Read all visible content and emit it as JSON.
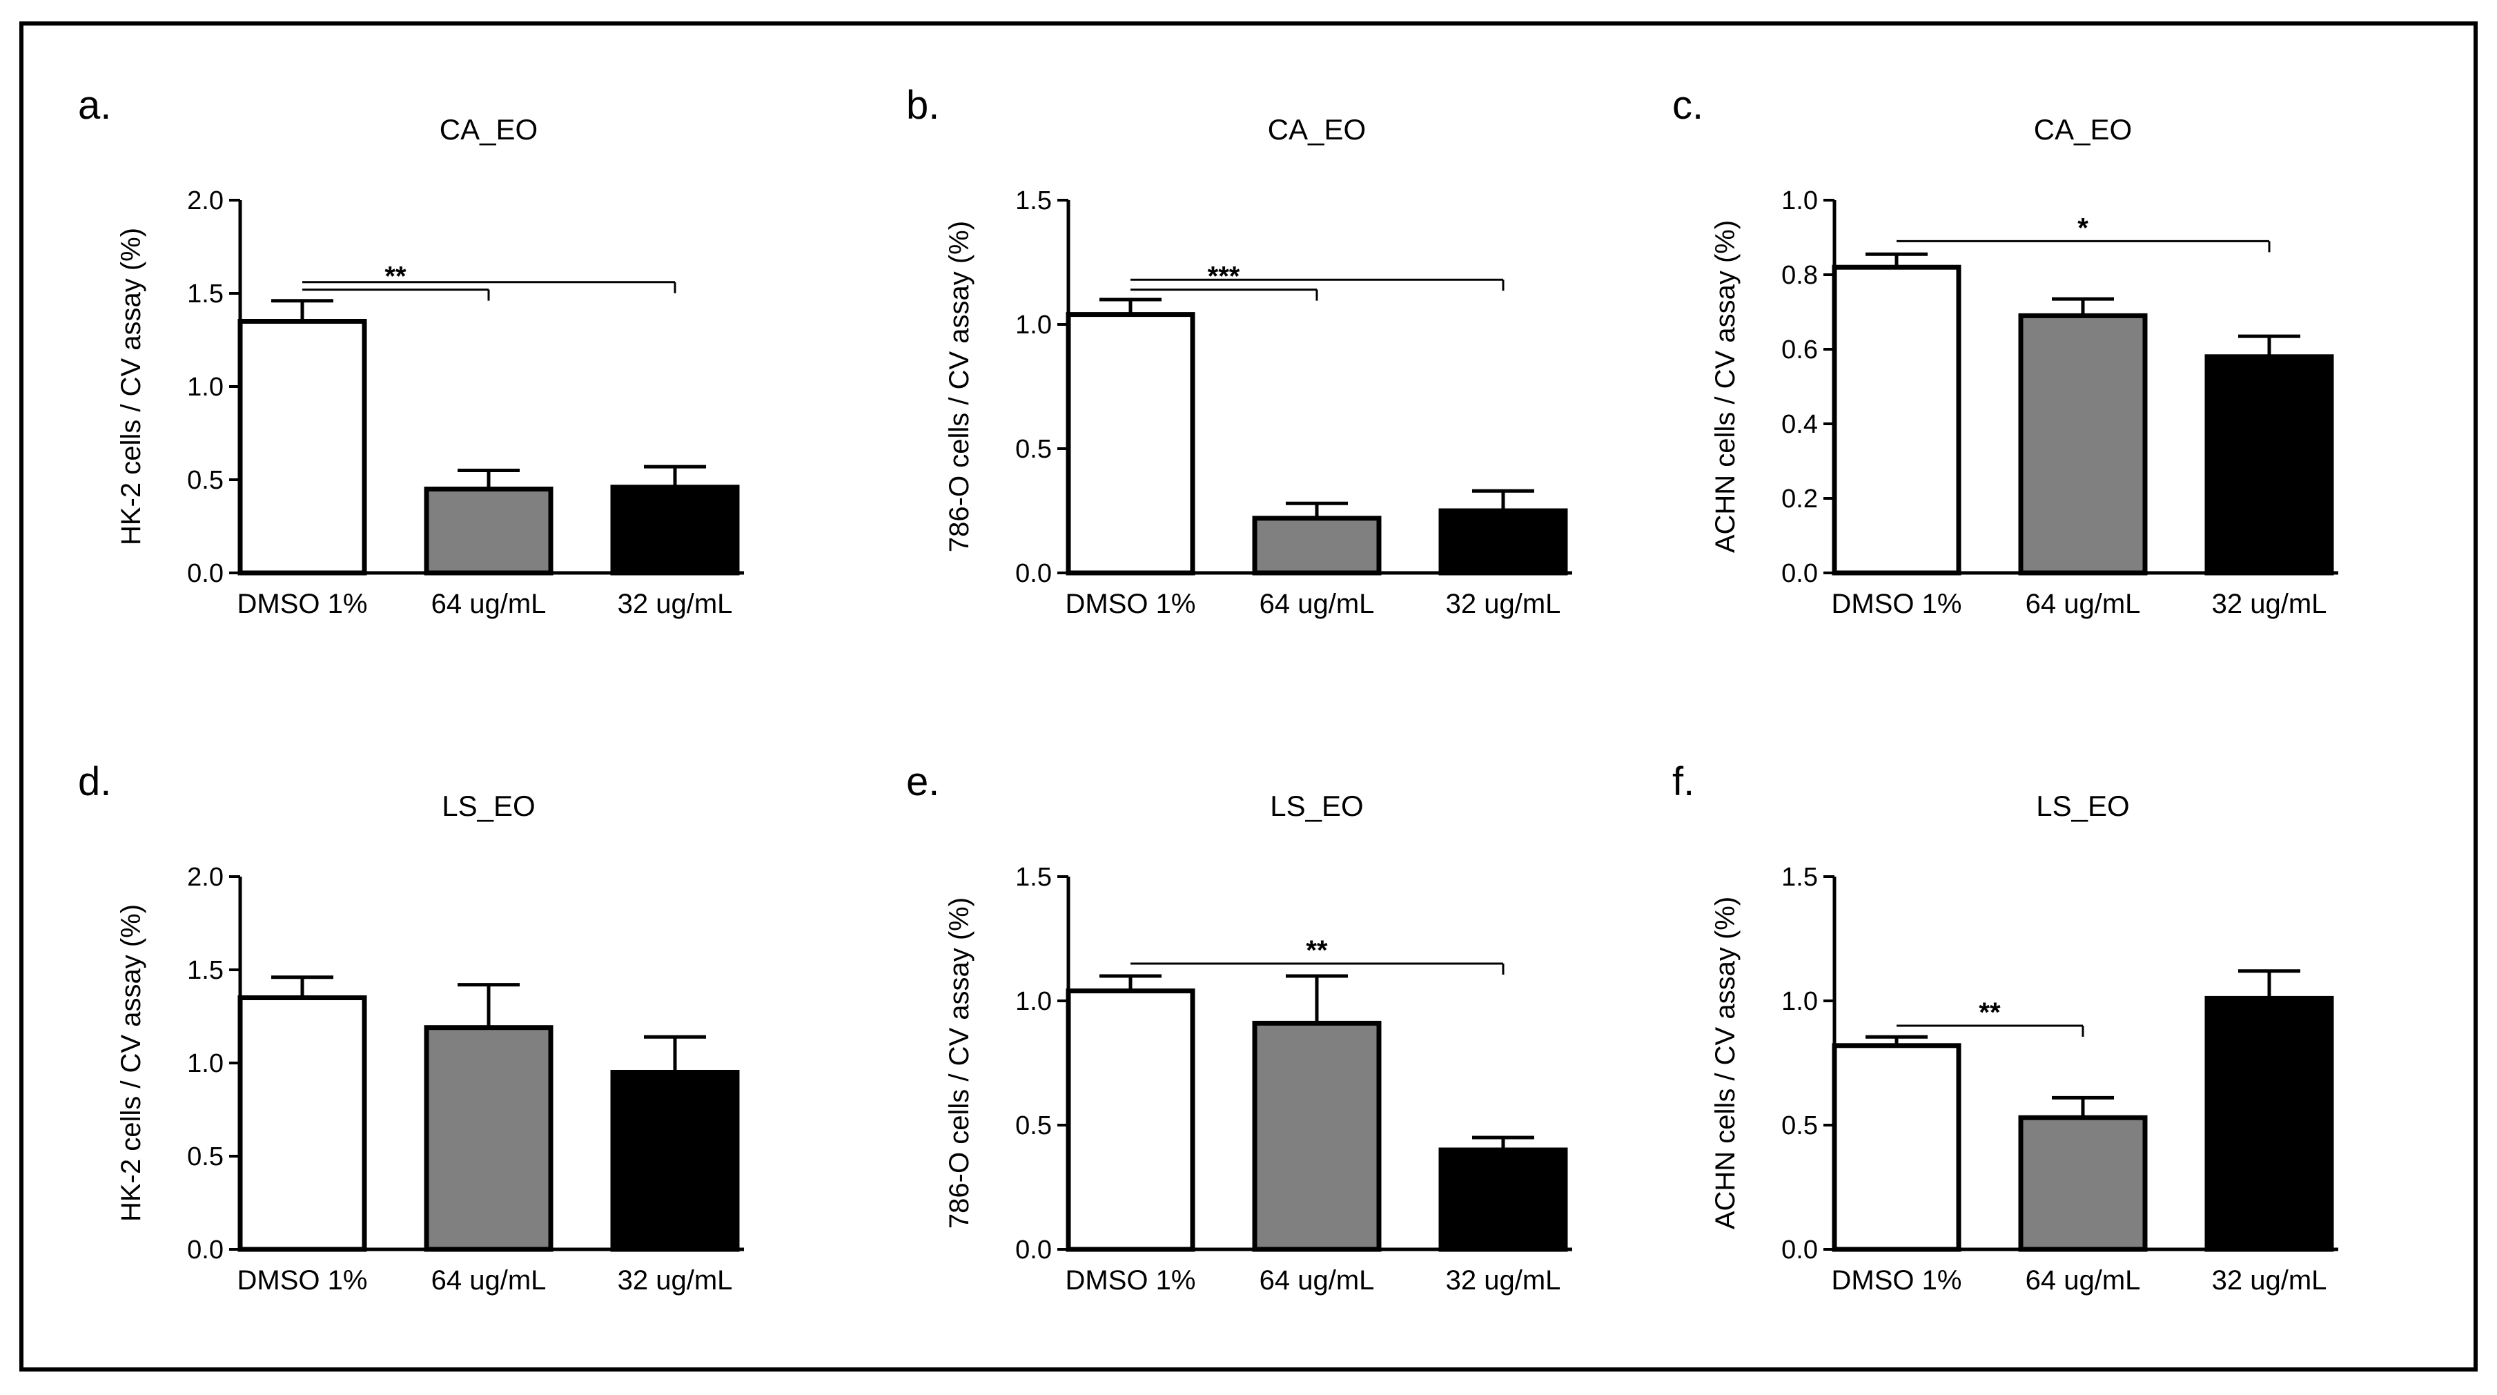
{
  "categories": [
    "DMSO 1%",
    "64 ug/mL",
    "32 ug/mL"
  ],
  "colors": {
    "bar_fills": [
      "#ffffff",
      "#808080",
      "#000000"
    ],
    "stroke": "#000000"
  },
  "chart_data": [
    {
      "panel": "a.",
      "type": "bar",
      "title": "CA_EO",
      "ylabel": "HK-2  cells / CV assay (%)",
      "ylim": [
        0,
        2.0
      ],
      "yticks": [
        "0.0",
        "0.5",
        "1.0",
        "1.5",
        "2.0"
      ],
      "values": [
        1.35,
        0.45,
        0.46
      ],
      "errors": [
        0.11,
        0.1,
        0.11
      ],
      "sig": [
        {
          "label": "**",
          "from": 0,
          "to": 1,
          "y": 1.52
        },
        {
          "label": "",
          "from": 0,
          "to": 2,
          "y": 1.56
        }
      ]
    },
    {
      "panel": "b.",
      "type": "bar",
      "title": "CA_EO",
      "ylabel": "786-O  cells / CV assay (%)",
      "ylim": [
        0,
        1.5
      ],
      "yticks": [
        "0.0",
        "0.5",
        "1.0",
        "1.5"
      ],
      "values": [
        1.04,
        0.22,
        0.25
      ],
      "errors": [
        0.06,
        0.06,
        0.08
      ],
      "sig": [
        {
          "label": "***",
          "from": 0,
          "to": 1,
          "y": 1.14
        },
        {
          "label": "",
          "from": 0,
          "to": 2,
          "y": 1.18
        }
      ]
    },
    {
      "panel": "c.",
      "type": "bar",
      "title": "CA_EO",
      "ylabel": "ACHN  cells / CV assay (%)",
      "ylim": [
        0,
        1.0
      ],
      "yticks": [
        "0.0",
        "0.2",
        "0.4",
        "0.6",
        "0.8",
        "1.0"
      ],
      "values": [
        0.82,
        0.69,
        0.58
      ],
      "errors": [
        0.035,
        0.045,
        0.055
      ],
      "sig": [
        {
          "label": "*",
          "from": 0,
          "to": 2,
          "y": 0.89
        }
      ]
    },
    {
      "panel": "d.",
      "type": "bar",
      "title": "LS_EO",
      "ylabel": "HK-2  cells / CV assay (%)",
      "ylim": [
        0,
        2.0
      ],
      "yticks": [
        "0.0",
        "0.5",
        "1.0",
        "1.5",
        "2.0"
      ],
      "values": [
        1.35,
        1.19,
        0.95
      ],
      "errors": [
        0.11,
        0.23,
        0.19
      ],
      "sig": []
    },
    {
      "panel": "e.",
      "type": "bar",
      "title": "LS_EO",
      "ylabel": "786-O  cells / CV assay (%)",
      "ylim": [
        0,
        1.5
      ],
      "yticks": [
        "0.0",
        "0.5",
        "1.0",
        "1.5"
      ],
      "values": [
        1.04,
        0.91,
        0.4
      ],
      "errors": [
        0.06,
        0.19,
        0.05
      ],
      "sig": [
        {
          "label": "**",
          "from": 0,
          "to": 2,
          "y": 1.15
        }
      ]
    },
    {
      "panel": "f.",
      "type": "bar",
      "title": "LS_EO",
      "ylabel": "ACHN  cells / CV assay (%)",
      "ylim": [
        0,
        1.5
      ],
      "yticks": [
        "0.0",
        "0.5",
        "1.0",
        "1.5"
      ],
      "values": [
        0.82,
        0.53,
        1.01
      ],
      "errors": [
        0.035,
        0.08,
        0.11
      ],
      "sig": [
        {
          "label": "**",
          "from": 0,
          "to": 1,
          "y": 0.9
        }
      ]
    }
  ]
}
